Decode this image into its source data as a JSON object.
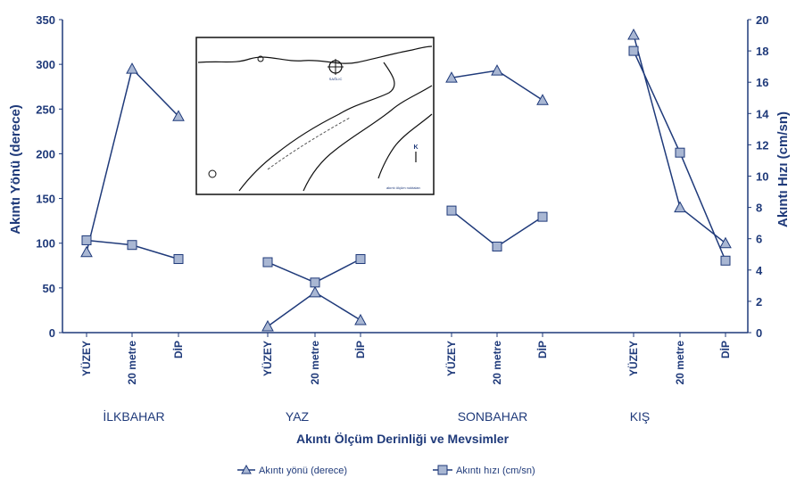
{
  "chart_data": {
    "type": "line",
    "xlabel": "Akıntı Ölçüm Derinliği ve Mevsimler",
    "ylabel_left": "Akıntı Yönü (derece)",
    "ylabel_right": "Akıntı Hızı (cm/sn)",
    "ylim_left": [
      0,
      350
    ],
    "yticks_left": [
      "0",
      "50",
      "100",
      "150",
      "200",
      "250",
      "300",
      "350"
    ],
    "ylim_right": [
      0,
      20
    ],
    "yticks_right": [
      "0",
      "2",
      "4",
      "6",
      "8",
      "10",
      "12",
      "14",
      "16",
      "18",
      "20"
    ],
    "grid": false,
    "legend_position": "bottom-center",
    "seasons": [
      {
        "name": "İLKBAHAR",
        "depths": [
          "YÜZEY",
          "20 metre",
          "DİP"
        ]
      },
      {
        "name": "YAZ",
        "depths": [
          "YÜZEY",
          "20 metre",
          "DİP"
        ]
      },
      {
        "name": "SONBAHAR",
        "depths": [
          "YÜZEY",
          "20 metre",
          "DİP"
        ]
      },
      {
        "name": "KIŞ",
        "depths": [
          "YÜZEY",
          "20 metre",
          "DİP"
        ]
      }
    ],
    "series": [
      {
        "name": "Akıntı yönü (derece)",
        "axis": "left",
        "marker": "triangle",
        "values": [
          [
            90,
            295,
            242
          ],
          [
            7,
            45,
            14
          ],
          [
            285,
            293,
            260
          ],
          [
            333,
            140,
            100
          ]
        ]
      },
      {
        "name": "Akıntı hızı (cm/sn)",
        "axis": "right",
        "marker": "square",
        "values": [
          [
            5.9,
            5.6,
            4.7
          ],
          [
            4.5,
            3.2,
            4.7
          ],
          [
            7.8,
            5.5,
            7.4
          ],
          [
            18.0,
            11.5,
            4.6
          ]
        ]
      }
    ],
    "inset_map": {
      "labels": [
        "SAĞLIC",
        "K",
        "akıntı ölçüm noktaları"
      ]
    }
  },
  "colors": {
    "line": "#1f3a7a",
    "marker_fill": "#a9b7d3",
    "text": "#1f3a7a"
  }
}
